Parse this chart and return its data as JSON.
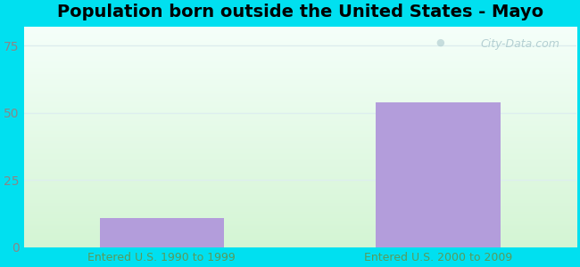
{
  "categories": [
    "Entered U.S. 1990 to 1999",
    "Entered U.S. 2000 to 2009"
  ],
  "values": [
    11,
    54
  ],
  "bar_color": "#b39ddb",
  "title": "Population born outside the United States - Mayo",
  "yticks": [
    0,
    25,
    50,
    75
  ],
  "ylim": [
    0,
    82
  ],
  "background_outer": "#00e0f0",
  "background_inner_top": "#d4f5d4",
  "background_inner_bottom": "#f5fffa",
  "xlabel_color": "#5a9a5a",
  "tick_color": "#888888",
  "title_fontsize": 14,
  "tick_fontsize": 10,
  "xlabel_fontsize": 9,
  "watermark_text": "City-Data.com",
  "watermark_color": "#aac8cc",
  "grid_color": "#ddeeee"
}
